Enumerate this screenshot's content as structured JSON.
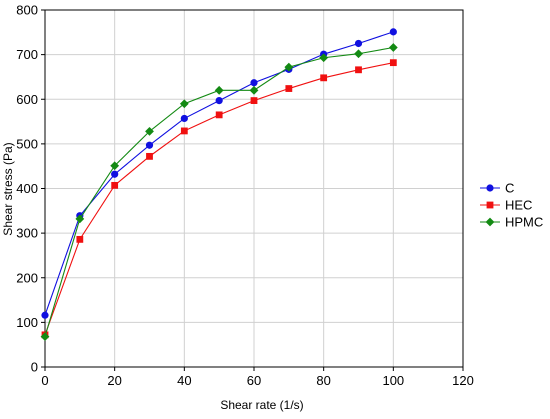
{
  "chart_data": {
    "type": "line",
    "title": "",
    "xlabel": "Shear rate (1/s)",
    "ylabel": "Shear stress (Pa)",
    "xlim": [
      0,
      120
    ],
    "ylim": [
      0,
      800
    ],
    "xticks": [
      0,
      20,
      40,
      60,
      80,
      100,
      120
    ],
    "yticks": [
      0,
      100,
      200,
      300,
      400,
      500,
      600,
      700,
      800
    ],
    "grid": true,
    "legend_position": "right",
    "series": [
      {
        "name": "C",
        "color": "#1010e0",
        "marker": "circle",
        "x": [
          0,
          10,
          20,
          30,
          40,
          50,
          60,
          70,
          80,
          90,
          100
        ],
        "y": [
          116,
          339,
          432,
          497,
          557,
          597,
          637,
          667,
          701,
          725,
          751
        ]
      },
      {
        "name": "HEC",
        "color": "#f01010",
        "marker": "square",
        "x": [
          0,
          10,
          20,
          30,
          40,
          50,
          60,
          70,
          80,
          90,
          100
        ],
        "y": [
          72,
          286,
          407,
          472,
          529,
          565,
          597,
          624,
          648,
          666,
          682
        ]
      },
      {
        "name": "HPMC",
        "color": "#138a13",
        "marker": "diamond",
        "x": [
          0,
          10,
          20,
          30,
          40,
          50,
          60,
          70,
          80,
          90,
          100
        ],
        "y": [
          68,
          332,
          451,
          528,
          590,
          620,
          620,
          672,
          693,
          702,
          716
        ]
      }
    ]
  }
}
